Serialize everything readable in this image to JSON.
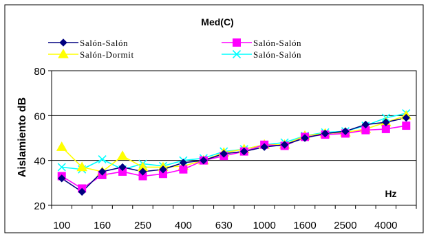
{
  "chart_data": {
    "type": "line",
    "title": "Med(C)",
    "xlabel": "",
    "ylabel": "Aislamiento dB",
    "unit_label": "Hz",
    "ylim": [
      20,
      80
    ],
    "yticks": [
      20,
      40,
      60,
      80
    ],
    "x": [
      "100",
      "125",
      "160",
      "200",
      "250",
      "315",
      "400",
      "500",
      "630",
      "800",
      "1000",
      "1250",
      "1600",
      "2000",
      "2500",
      "3150",
      "4000",
      "5000"
    ],
    "xtick_labels": [
      "100",
      "",
      "160",
      "",
      "250",
      "",
      "400",
      "",
      "630",
      "",
      "1000",
      "",
      "1600",
      "",
      "2500",
      "",
      "4000",
      ""
    ],
    "grid": "horizontal",
    "legend": "top",
    "series": [
      {
        "name": "Salón-Salón",
        "color": "#000080",
        "marker": "diamond",
        "values": [
          32,
          26,
          35,
          37,
          35,
          36,
          39,
          40,
          43,
          44,
          46,
          47,
          50,
          52,
          53,
          56,
          57,
          59
        ]
      },
      {
        "name": "Salón-Salón",
        "color": "#ff00ff",
        "marker": "square",
        "values": [
          33,
          27.5,
          33.5,
          35,
          33,
          34,
          36,
          40,
          42,
          44,
          47,
          46.5,
          50.5,
          51.5,
          52,
          53.5,
          54,
          55.5
        ]
      },
      {
        "name": "Salón-Dormit",
        "color": "#ffff00",
        "marker": "triangle",
        "values": [
          46,
          37,
          35,
          42,
          37,
          37,
          37.5,
          40,
          43.5,
          45,
          47,
          47,
          51,
          52,
          52.5,
          54,
          57,
          60
        ]
      },
      {
        "name": "Salón-Salón",
        "color": "#00ffff",
        "marker": "x",
        "values": [
          37,
          36,
          40.5,
          36,
          38.5,
          37.5,
          40,
          41,
          44,
          45,
          47,
          48,
          51,
          52.5,
          53,
          55.5,
          59,
          61
        ]
      }
    ]
  }
}
